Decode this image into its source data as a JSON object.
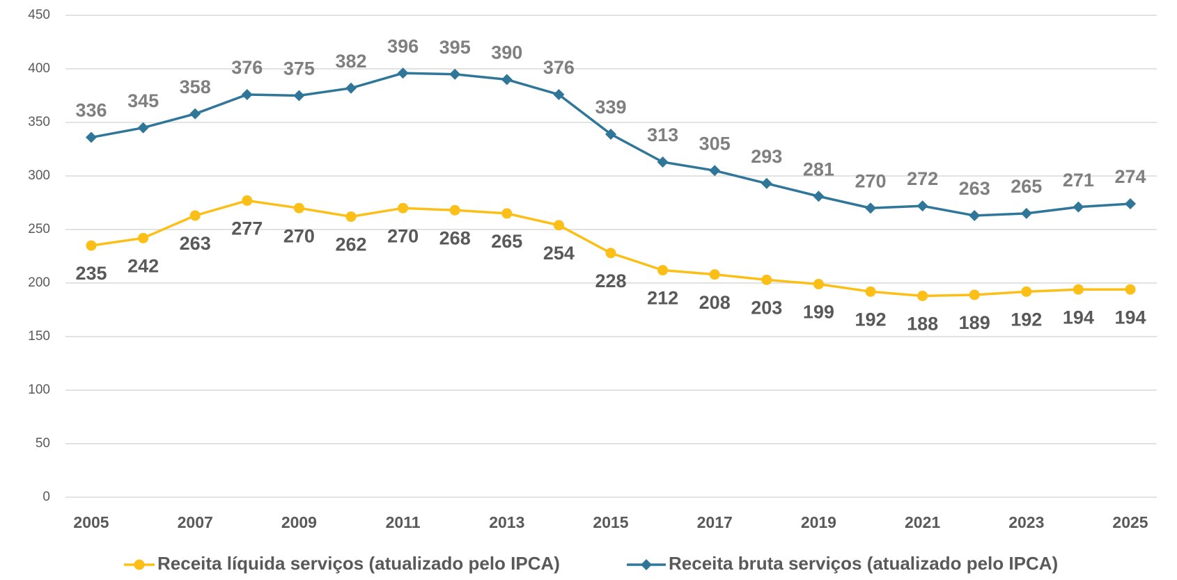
{
  "chart_data": {
    "type": "line",
    "x": [
      2005,
      2006,
      2007,
      2008,
      2009,
      2010,
      2011,
      2012,
      2013,
      2014,
      2015,
      2016,
      2017,
      2018,
      2019,
      2020,
      2021,
      2022,
      2023,
      2024,
      2025
    ],
    "xlim": [
      2005,
      2025
    ],
    "xticks": [
      2005,
      2007,
      2009,
      2011,
      2013,
      2015,
      2017,
      2019,
      2021,
      2023,
      2025
    ],
    "ylim": [
      0,
      450
    ],
    "yticks": [
      0,
      50,
      100,
      150,
      200,
      250,
      300,
      350,
      400,
      450
    ],
    "grid": true,
    "legend": "bottom",
    "series": [
      {
        "name": "Receita líquida serviços (atualizado pelo IPCA)",
        "color": "#fbbf18",
        "marker": "circle",
        "label_position": "below",
        "values": [
          235,
          242,
          263,
          277,
          270,
          262,
          270,
          268,
          265,
          254,
          228,
          212,
          208,
          203,
          199,
          192,
          188,
          189,
          192,
          194,
          194
        ]
      },
      {
        "name": "Receita bruta serviços (atualizado pelo IPCA)",
        "color": "#2f7699",
        "marker": "diamond",
        "label_position": "above",
        "values": [
          336,
          345,
          358,
          376,
          375,
          382,
          396,
          395,
          390,
          376,
          339,
          313,
          305,
          293,
          281,
          270,
          272,
          263,
          265,
          271,
          274
        ]
      }
    ]
  }
}
